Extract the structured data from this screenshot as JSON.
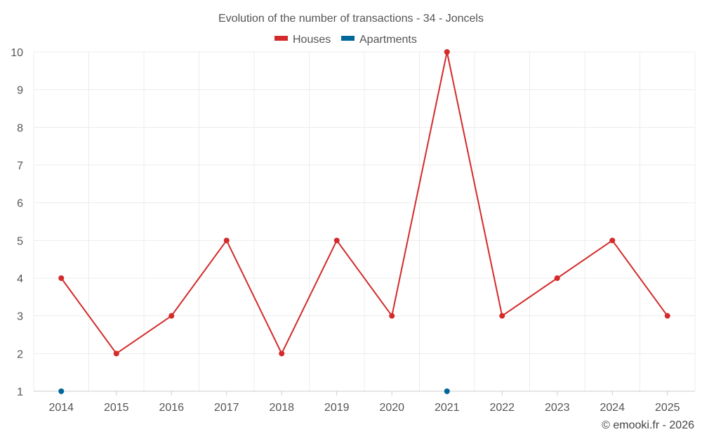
{
  "chart_data": {
    "type": "line",
    "title": "Evolution of the number of transactions - 34 - Joncels",
    "categories": [
      "2014",
      "2015",
      "2016",
      "2017",
      "2018",
      "2019",
      "2020",
      "2021",
      "2022",
      "2023",
      "2024",
      "2025"
    ],
    "series": [
      {
        "name": "Houses",
        "color": "#d42a2a",
        "values": [
          4,
          2,
          3,
          5,
          2,
          5,
          3,
          10,
          3,
          4,
          5,
          3
        ]
      },
      {
        "name": "Apartments",
        "color": "#00679a",
        "values": [
          1,
          null,
          null,
          null,
          null,
          null,
          null,
          1,
          null,
          null,
          null,
          null
        ]
      }
    ],
    "ylim": [
      1,
      10
    ],
    "yticks": [
      "1",
      "2",
      "3",
      "4",
      "5",
      "6",
      "7",
      "8",
      "9",
      "10"
    ],
    "grid": true,
    "legend_position": "top-center"
  },
  "credit": "© emooki.fr - 2026"
}
